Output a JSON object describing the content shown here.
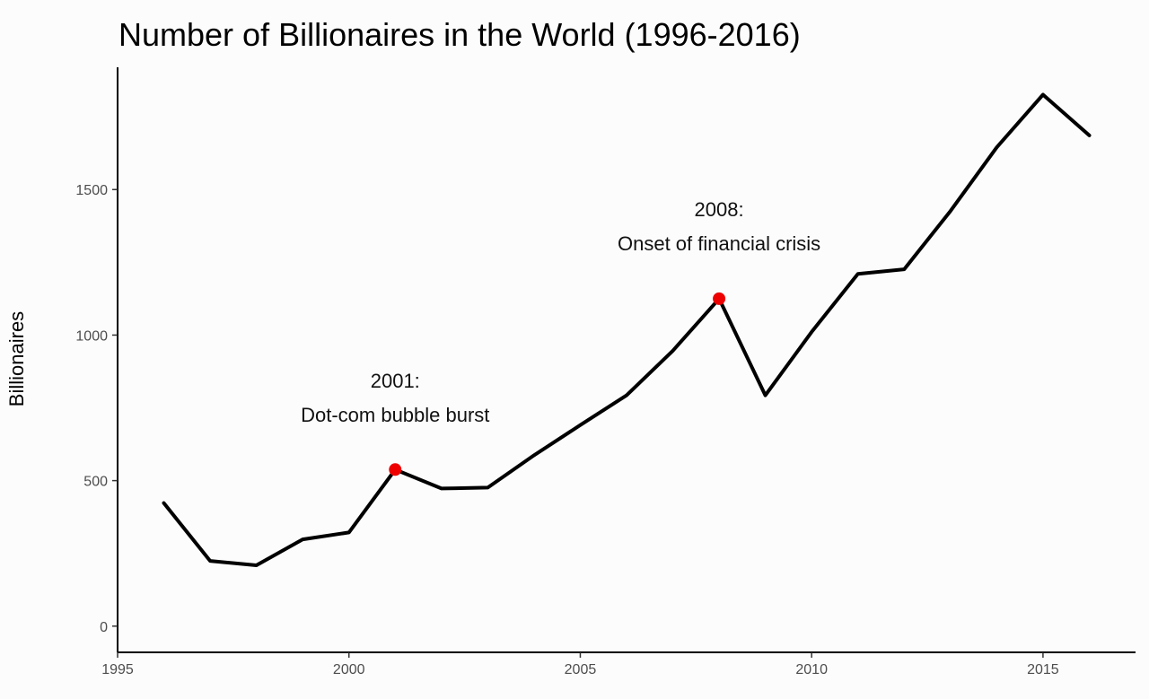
{
  "chart_data": {
    "type": "line",
    "title": "Number of Billionaires in the World (1996-2016)",
    "xlabel": "",
    "ylabel": "Billionaires",
    "xlim": [
      1995,
      2017
    ],
    "ylim": [
      -90,
      1920
    ],
    "x_ticks": [
      1995,
      2000,
      2005,
      2010,
      2015
    ],
    "y_ticks": [
      0,
      500,
      1000,
      1500
    ],
    "grid": false,
    "legend": "none",
    "line_color": "#000000",
    "highlight_color": "#ee0000",
    "series": [
      {
        "x": [
          1996,
          1997,
          1998,
          1999,
          2000,
          2001,
          2002,
          2003,
          2004,
          2005,
          2006,
          2007,
          2008,
          2009,
          2010,
          2011,
          2012,
          2013,
          2014,
          2015,
          2016
        ],
        "values": [
          423,
          224,
          209,
          298,
          322,
          538,
          473,
          476,
          587,
          691,
          793,
          946,
          1125,
          793,
          1011,
          1210,
          1226,
          1426,
          1645,
          1826,
          1686
        ]
      }
    ],
    "highlights": [
      {
        "x": 2001,
        "y": 538
      },
      {
        "x": 2008,
        "y": 1125
      }
    ],
    "annotations": [
      {
        "x": 2001,
        "y": 785,
        "line1": "2001:",
        "line2": "Dot-com bubble burst"
      },
      {
        "x": 2008,
        "y": 1375,
        "line1": "2008:",
        "line2": "Onset of financial crisis"
      }
    ]
  }
}
